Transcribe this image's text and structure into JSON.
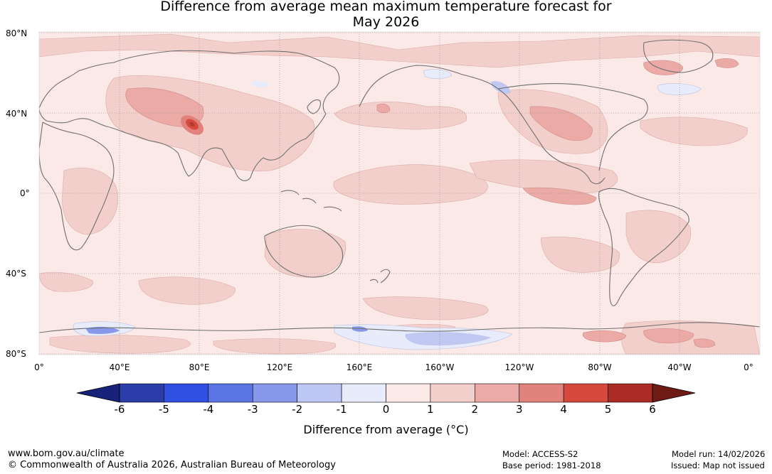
{
  "title": {
    "line1": "Difference from average mean maximum temperature forecast for",
    "line2": "May 2026"
  },
  "map": {
    "lat_labels": [
      "80°N",
      "40°N",
      "0°",
      "40°S",
      "80°S"
    ],
    "lon_labels": [
      "0°",
      "40°E",
      "80°E",
      "120°E",
      "160°E",
      "160°W",
      "120°W",
      "80°W",
      "40°W",
      "0°"
    ],
    "anomaly_colors": {
      "ocean_base": "#fbe9e7",
      "zero_to_one": "#fbe9e7",
      "one_to_two": "#f3cfcc",
      "two_to_three": "#ebaaa6",
      "three_to_four": "#e1827c",
      "hot_spot": "#b03a32",
      "minus_one_to_zero": "#e8ecfa",
      "minus_two_to_minus_one": "#c0c8f2",
      "coastline": "#6e6e6e"
    }
  },
  "colorbar": {
    "ticks": [
      "-6",
      "-5",
      "-4",
      "-3",
      "-2",
      "-1",
      "0",
      "1",
      "2",
      "3",
      "4",
      "5",
      "6"
    ],
    "colors": [
      "#2b3da8",
      "#2f50e0",
      "#5b74e3",
      "#8797ea",
      "#bec6f3",
      "#e8ecfa",
      "#fbe9e7",
      "#f3cfcc",
      "#ebaaa6",
      "#e1827c",
      "#d7483d",
      "#aa2c24"
    ],
    "extend_low_color": "#18227a",
    "extend_high_color": "#6e1a15",
    "label": "Difference from average (°C)"
  },
  "footer": {
    "website": "www.bom.gov.au/climate",
    "copyright": "© Commonwealth of Australia 2026, Australian Bureau of Meteorology",
    "model": "Model: ACCESS-S2",
    "base_period": "Base period: 1981-2018",
    "model_run": "Model run: 14/02/2026",
    "issued": "Issued: Map not issued"
  }
}
